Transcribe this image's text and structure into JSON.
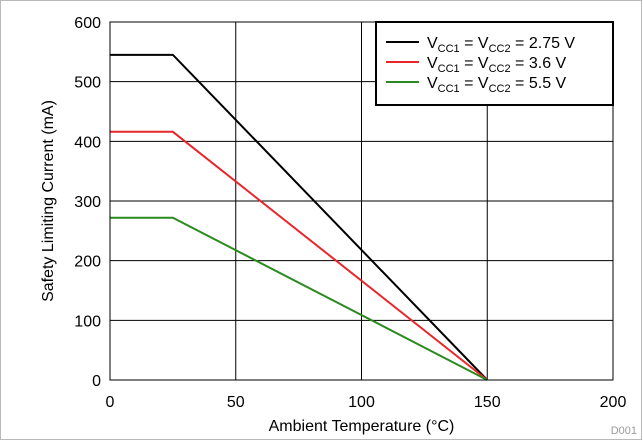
{
  "chart_data": {
    "type": "line",
    "xlabel": "Ambient Temperature (°C)",
    "ylabel": "Safety Limiting Current (mA)",
    "xlim": [
      0,
      200
    ],
    "ylim": [
      0,
      600
    ],
    "xticks": [
      0,
      50,
      100,
      150,
      200
    ],
    "yticks": [
      0,
      100,
      200,
      300,
      400,
      500,
      600
    ],
    "grid": true,
    "legend_position": "top-right",
    "series": [
      {
        "name": "VCC1 = VCC2 = 2.75 V",
        "legend": {
          "v1": "V",
          "s1": "CC1",
          "mid": " = V",
          "s2": "CC2",
          "tail": " = 2.75 V"
        },
        "color": "#000000",
        "x": [
          0,
          25,
          150
        ],
        "y": [
          545,
          545,
          0
        ]
      },
      {
        "name": "VCC1 = VCC2 = 3.6 V",
        "legend": {
          "v1": "V",
          "s1": "CC1",
          "mid": " = V",
          "s2": "CC2",
          "tail": " = 3.6 V"
        },
        "color": "#e8262a",
        "x": [
          0,
          25,
          150
        ],
        "y": [
          416,
          416,
          0
        ]
      },
      {
        "name": "VCC1 = VCC2 = 5.5 V",
        "legend": {
          "v1": "V",
          "s1": "CC1",
          "mid": " = V",
          "s2": "CC2",
          "tail": " = 5.5 V"
        },
        "color": "#2a8a1f",
        "x": [
          0,
          25,
          150
        ],
        "y": [
          272,
          272,
          0
        ]
      }
    ]
  },
  "figure_id": "D001"
}
